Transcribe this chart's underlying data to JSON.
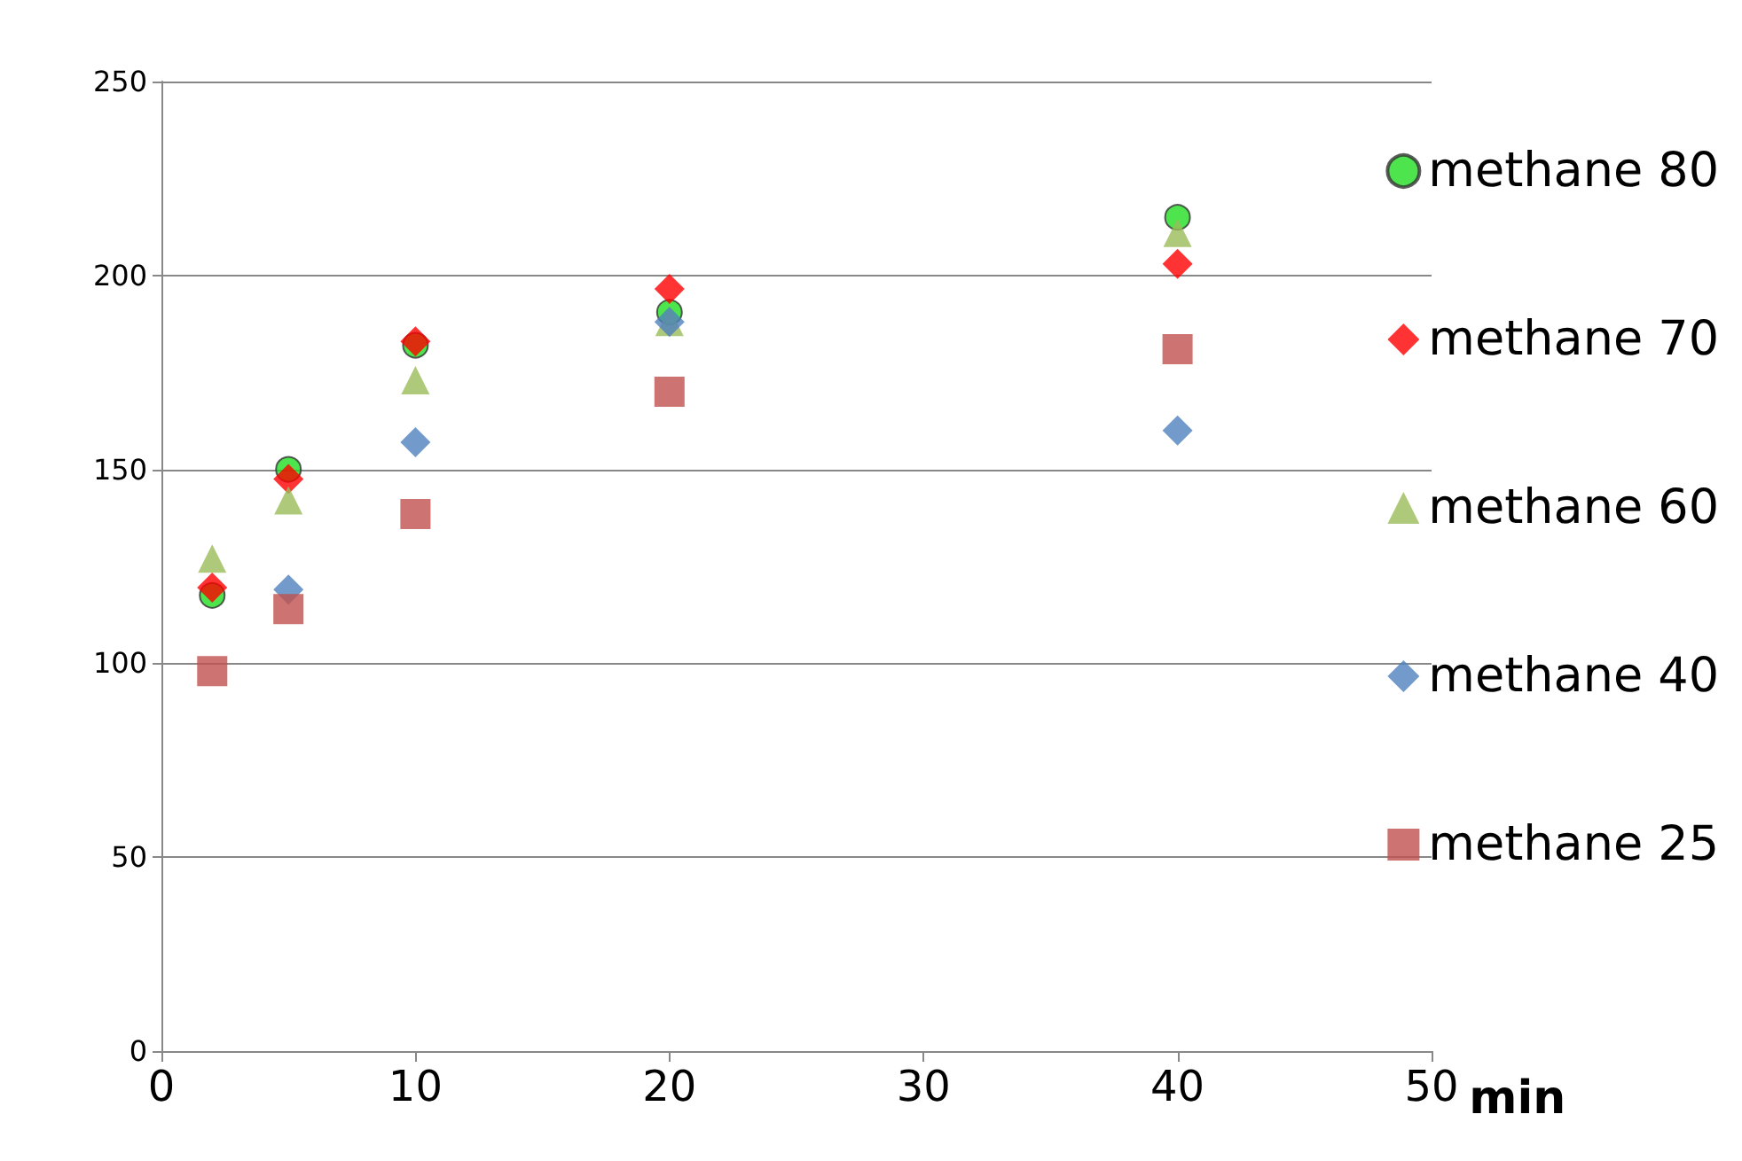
{
  "chart_data": {
    "type": "scatter",
    "xlabel": "min",
    "x": [
      2,
      5,
      10,
      20,
      40
    ],
    "series": [
      {
        "name": "methane 80",
        "color": "#22dd22",
        "marker": "circle",
        "values": [
          117.5,
          150,
          182,
          190.5,
          215
        ]
      },
      {
        "name": "methane 70",
        "color": "#ff0000",
        "marker": "diamond",
        "values": [
          119.5,
          147.5,
          183,
          196.5,
          203
        ]
      },
      {
        "name": "methane 60",
        "color": "#9bbb59",
        "marker": "triangle",
        "values": [
          127,
          142,
          173,
          188,
          211
        ]
      },
      {
        "name": "methane 40",
        "color": "#4f81bd",
        "marker": "diamond",
        "values": [
          null,
          119,
          157,
          188,
          160
        ]
      },
      {
        "name": "methane 25",
        "color": "#c0504d",
        "marker": "square",
        "values": [
          98,
          114,
          138.5,
          170,
          181
        ]
      }
    ],
    "xlim": [
      0,
      50
    ],
    "xticks": [
      0,
      10,
      20,
      30,
      40,
      50
    ],
    "ylim": [
      0,
      250
    ],
    "yticks": [
      0,
      50,
      100,
      150,
      200,
      250
    ],
    "grid": "y",
    "legend": "right"
  }
}
